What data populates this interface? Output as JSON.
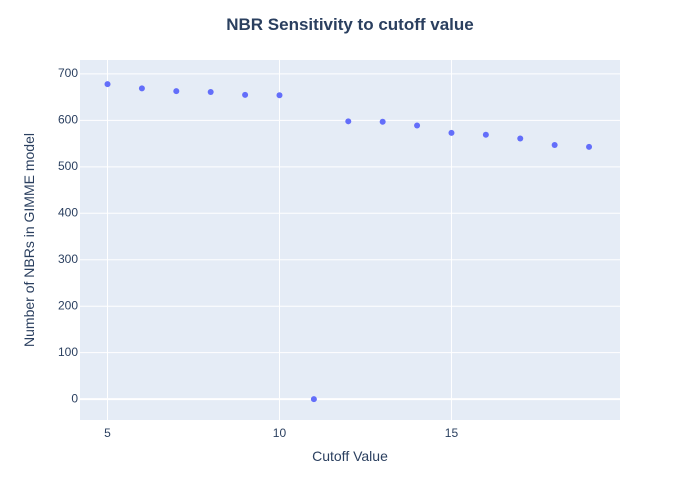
{
  "colors": {
    "plot_background": "#e5ecf6",
    "gridline": "#ffffff",
    "marker": "#636efa",
    "text": "#2a3f5f"
  },
  "chart_data": {
    "type": "scatter",
    "title": "NBR Sensitivity to cutoff value",
    "xlabel": "Cutoff Value",
    "ylabel": "Number of NBRs in GIMME model",
    "xlim": [
      4.2,
      19.9
    ],
    "ylim": [
      -45,
      730
    ],
    "xticks": [
      5,
      10,
      15
    ],
    "yticks": [
      0,
      100,
      200,
      300,
      400,
      500,
      600,
      700
    ],
    "grid": true,
    "series": [
      {
        "x": [
          5,
          6,
          7,
          8,
          9,
          10,
          11,
          12,
          13,
          14,
          15,
          16,
          17,
          18,
          19
        ],
        "y": [
          678,
          669,
          663,
          661,
          655,
          654,
          0,
          598,
          597,
          589,
          573,
          569,
          561,
          547,
          543
        ]
      }
    ]
  }
}
